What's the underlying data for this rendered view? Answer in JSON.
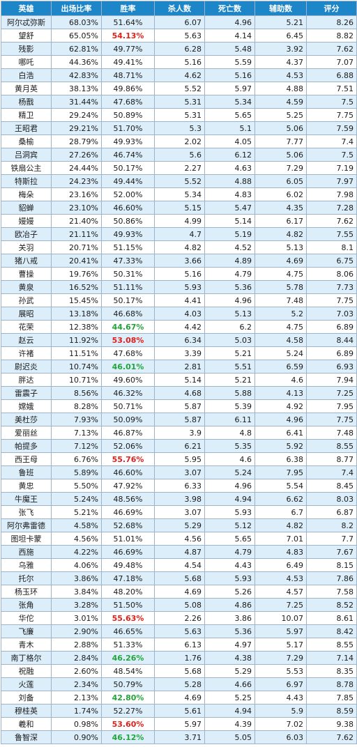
{
  "table": {
    "headers": [
      "英雄",
      "出场比率",
      "胜率",
      "杀人数",
      "死亡数",
      "辅助数",
      "评分"
    ],
    "highlight_colors": {
      "red": "#e0201b",
      "green": "#21a53a"
    },
    "rows": [
      {
        "hero": "阿尔忒弥斯",
        "pick": "68.03%",
        "win": "51.64%",
        "kills": "6.07",
        "deaths": "4.96",
        "assists": "5.21",
        "score": "8.26",
        "hl": ""
      },
      {
        "hero": "望舒",
        "pick": "65.05%",
        "win": "54.13%",
        "kills": "5.63",
        "deaths": "4.14",
        "assists": "6.45",
        "score": "8.82",
        "hl": "red"
      },
      {
        "hero": "残影",
        "pick": "62.81%",
        "win": "49.77%",
        "kills": "6.28",
        "deaths": "5.48",
        "assists": "3.92",
        "score": "7.62",
        "hl": ""
      },
      {
        "hero": "哪吒",
        "pick": "44.36%",
        "win": "49.41%",
        "kills": "5.16",
        "deaths": "5.59",
        "assists": "4.37",
        "score": "7.07",
        "hl": ""
      },
      {
        "hero": "白浩",
        "pick": "42.83%",
        "win": "48.71%",
        "kills": "4.62",
        "deaths": "5.16",
        "assists": "4.53",
        "score": "6.88",
        "hl": ""
      },
      {
        "hero": "黄月英",
        "pick": "38.13%",
        "win": "49.86%",
        "kills": "5.52",
        "deaths": "5.97",
        "assists": "4.88",
        "score": "7.51",
        "hl": ""
      },
      {
        "hero": "杨戬",
        "pick": "31.44%",
        "win": "47.68%",
        "kills": "5.31",
        "deaths": "5.34",
        "assists": "4.59",
        "score": "7.5",
        "hl": ""
      },
      {
        "hero": "精卫",
        "pick": "29.24%",
        "win": "50.89%",
        "kills": "5.31",
        "deaths": "5.65",
        "assists": "5.25",
        "score": "7.75",
        "hl": ""
      },
      {
        "hero": "王昭君",
        "pick": "29.21%",
        "win": "51.70%",
        "kills": "5.3",
        "deaths": "5.1",
        "assists": "5.06",
        "score": "7.59",
        "hl": ""
      },
      {
        "hero": "桑榆",
        "pick": "28.79%",
        "win": "49.93%",
        "kills": "2.02",
        "deaths": "4.05",
        "assists": "7.77",
        "score": "7.4",
        "hl": ""
      },
      {
        "hero": "吕洞宾",
        "pick": "27.26%",
        "win": "46.74%",
        "kills": "5.6",
        "deaths": "6.12",
        "assists": "5.06",
        "score": "7.5",
        "hl": ""
      },
      {
        "hero": "铁扇公主",
        "pick": "24.44%",
        "win": "50.17%",
        "kills": "2.27",
        "deaths": "4.63",
        "assists": "7.29",
        "score": "7.19",
        "hl": ""
      },
      {
        "hero": "特斯拉",
        "pick": "24.23%",
        "win": "49.44%",
        "kills": "5.52",
        "deaths": "4.88",
        "assists": "6.05",
        "score": "7.97",
        "hl": ""
      },
      {
        "hero": "梅朵",
        "pick": "23.16%",
        "win": "52.00%",
        "kills": "5.34",
        "deaths": "4.83",
        "assists": "6.02",
        "score": "7.98",
        "hl": ""
      },
      {
        "hero": "貂蝉",
        "pick": "23.10%",
        "win": "46.60%",
        "kills": "5.15",
        "deaths": "5.47",
        "assists": "4.35",
        "score": "7.28",
        "hl": ""
      },
      {
        "hero": "嫚嫚",
        "pick": "21.40%",
        "win": "50.86%",
        "kills": "4.99",
        "deaths": "5.14",
        "assists": "6.17",
        "score": "7.62",
        "hl": ""
      },
      {
        "hero": "欧冶子",
        "pick": "21.11%",
        "win": "49.93%",
        "kills": "4.7",
        "deaths": "5.19",
        "assists": "4.82",
        "score": "7.55",
        "hl": ""
      },
      {
        "hero": "关羽",
        "pick": "20.71%",
        "win": "51.15%",
        "kills": "4.82",
        "deaths": "4.52",
        "assists": "5.13",
        "score": "8.1",
        "hl": ""
      },
      {
        "hero": "猪八戒",
        "pick": "20.41%",
        "win": "47.33%",
        "kills": "3.66",
        "deaths": "4.89",
        "assists": "4.69",
        "score": "6.75",
        "hl": ""
      },
      {
        "hero": "曹操",
        "pick": "19.76%",
        "win": "50.31%",
        "kills": "5.16",
        "deaths": "4.79",
        "assists": "4.75",
        "score": "8.06",
        "hl": ""
      },
      {
        "hero": "黄泉",
        "pick": "16.52%",
        "win": "51.11%",
        "kills": "5.93",
        "deaths": "5.36",
        "assists": "5.78",
        "score": "7.73",
        "hl": ""
      },
      {
        "hero": "孙武",
        "pick": "15.45%",
        "win": "50.17%",
        "kills": "4.41",
        "deaths": "4.96",
        "assists": "7.48",
        "score": "7.75",
        "hl": ""
      },
      {
        "hero": "展昭",
        "pick": "13.18%",
        "win": "46.68%",
        "kills": "4.03",
        "deaths": "5.13",
        "assists": "5.2",
        "score": "7.03",
        "hl": ""
      },
      {
        "hero": "花荣",
        "pick": "12.38%",
        "win": "44.67%",
        "kills": "4.42",
        "deaths": "6.2",
        "assists": "4.75",
        "score": "6.89",
        "hl": "green"
      },
      {
        "hero": "赵云",
        "pick": "11.92%",
        "win": "53.08%",
        "kills": "6.34",
        "deaths": "5.03",
        "assists": "4.58",
        "score": "8.44",
        "hl": "red"
      },
      {
        "hero": "许褚",
        "pick": "11.51%",
        "win": "47.68%",
        "kills": "3.39",
        "deaths": "5.21",
        "assists": "5.24",
        "score": "6.89",
        "hl": ""
      },
      {
        "hero": "尉迟炎",
        "pick": "10.74%",
        "win": "46.01%",
        "kills": "2.81",
        "deaths": "5.51",
        "assists": "6.59",
        "score": "6.93",
        "hl": "green"
      },
      {
        "hero": "胖达",
        "pick": "10.71%",
        "win": "49.60%",
        "kills": "5.14",
        "deaths": "5.21",
        "assists": "4.6",
        "score": "7.94",
        "hl": ""
      },
      {
        "hero": "雷震子",
        "pick": "8.56%",
        "win": "46.32%",
        "kills": "4.68",
        "deaths": "5.88",
        "assists": "4.13",
        "score": "7.25",
        "hl": ""
      },
      {
        "hero": "嫦娥",
        "pick": "8.28%",
        "win": "50.71%",
        "kills": "5.87",
        "deaths": "5.39",
        "assists": "4.92",
        "score": "7.95",
        "hl": ""
      },
      {
        "hero": "美杜莎",
        "pick": "7.93%",
        "win": "50.09%",
        "kills": "5.87",
        "deaths": "6.11",
        "assists": "4.96",
        "score": "7.75",
        "hl": ""
      },
      {
        "hero": "爱丽丝",
        "pick": "7.13%",
        "win": "46.87%",
        "kills": "3.9",
        "deaths": "4.8",
        "assists": "6.41",
        "score": "7.48",
        "hl": ""
      },
      {
        "hero": "帕提多",
        "pick": "7.12%",
        "win": "52.06%",
        "kills": "6.21",
        "deaths": "5.35",
        "assists": "5.92",
        "score": "8.55",
        "hl": ""
      },
      {
        "hero": "西王母",
        "pick": "6.76%",
        "win": "55.76%",
        "kills": "5.95",
        "deaths": "4.6",
        "assists": "6.38",
        "score": "8.77",
        "hl": "red"
      },
      {
        "hero": "鲁班",
        "pick": "5.89%",
        "win": "46.60%",
        "kills": "3.07",
        "deaths": "5.24",
        "assists": "7.95",
        "score": "7.4",
        "hl": ""
      },
      {
        "hero": "黄忠",
        "pick": "5.50%",
        "win": "47.92%",
        "kills": "6.33",
        "deaths": "4.96",
        "assists": "5.54",
        "score": "8.45",
        "hl": ""
      },
      {
        "hero": "牛魔王",
        "pick": "5.24%",
        "win": "48.56%",
        "kills": "3.98",
        "deaths": "4.94",
        "assists": "6.62",
        "score": "8.03",
        "hl": ""
      },
      {
        "hero": "张飞",
        "pick": "5.21%",
        "win": "46.69%",
        "kills": "3.07",
        "deaths": "5.93",
        "assists": "6.7",
        "score": "6.87",
        "hl": ""
      },
      {
        "hero": "阿尔弗雷德",
        "pick": "4.58%",
        "win": "52.68%",
        "kills": "5.29",
        "deaths": "5.12",
        "assists": "4.82",
        "score": "8.2",
        "hl": ""
      },
      {
        "hero": "图坦卡蒙",
        "pick": "4.56%",
        "win": "51.01%",
        "kills": "4.56",
        "deaths": "5.65",
        "assists": "7.01",
        "score": "7.7",
        "hl": ""
      },
      {
        "hero": "西施",
        "pick": "4.22%",
        "win": "46.69%",
        "kills": "4.87",
        "deaths": "4.79",
        "assists": "4.83",
        "score": "7.67",
        "hl": ""
      },
      {
        "hero": "乌雅",
        "pick": "4.06%",
        "win": "49.48%",
        "kills": "4.54",
        "deaths": "4.43",
        "assists": "6.49",
        "score": "8.15",
        "hl": ""
      },
      {
        "hero": "托尔",
        "pick": "3.86%",
        "win": "47.18%",
        "kills": "5.68",
        "deaths": "5.93",
        "assists": "4.53",
        "score": "7.86",
        "hl": ""
      },
      {
        "hero": "杨玉环",
        "pick": "3.84%",
        "win": "48.20%",
        "kills": "4.69",
        "deaths": "5.26",
        "assists": "4.57",
        "score": "7.58",
        "hl": ""
      },
      {
        "hero": "张角",
        "pick": "3.28%",
        "win": "51.50%",
        "kills": "5.08",
        "deaths": "4.86",
        "assists": "7.25",
        "score": "8.52",
        "hl": ""
      },
      {
        "hero": "华佗",
        "pick": "3.01%",
        "win": "55.63%",
        "kills": "2.26",
        "deaths": "3.86",
        "assists": "10.07",
        "score": "8.61",
        "hl": "red"
      },
      {
        "hero": "飞廉",
        "pick": "2.90%",
        "win": "46.65%",
        "kills": "5.63",
        "deaths": "5.36",
        "assists": "5.97",
        "score": "8.42",
        "hl": ""
      },
      {
        "hero": "青木",
        "pick": "2.88%",
        "win": "51.33%",
        "kills": "6.13",
        "deaths": "4.97",
        "assists": "5.17",
        "score": "8.55",
        "hl": ""
      },
      {
        "hero": "南丁格尔",
        "pick": "2.84%",
        "win": "46.26%",
        "kills": "1.76",
        "deaths": "4.38",
        "assists": "7.29",
        "score": "7.14",
        "hl": "green"
      },
      {
        "hero": "祝融",
        "pick": "2.60%",
        "win": "48.54%",
        "kills": "5.68",
        "deaths": "5.29",
        "assists": "5.53",
        "score": "8.35",
        "hl": ""
      },
      {
        "hero": "火莲",
        "pick": "2.34%",
        "win": "50.79%",
        "kills": "5.28",
        "deaths": "4.66",
        "assists": "6.97",
        "score": "8.78",
        "hl": ""
      },
      {
        "hero": "刘备",
        "pick": "2.13%",
        "win": "42.80%",
        "kills": "4.69",
        "deaths": "5.25",
        "assists": "4.43",
        "score": "7.85",
        "hl": "green"
      },
      {
        "hero": "穆桂英",
        "pick": "1.74%",
        "win": "52.27%",
        "kills": "5.61",
        "deaths": "4.94",
        "assists": "5.9",
        "score": "8.59",
        "hl": ""
      },
      {
        "hero": "羲和",
        "pick": "0.98%",
        "win": "53.60%",
        "kills": "5.97",
        "deaths": "4.39",
        "assists": "7.02",
        "score": "9.38",
        "hl": "red"
      },
      {
        "hero": "鲁智深",
        "pick": "0.90%",
        "win": "46.12%",
        "kills": "3.71",
        "deaths": "5.05",
        "assists": "6.03",
        "score": "7.62",
        "hl": "green"
      }
    ]
  }
}
